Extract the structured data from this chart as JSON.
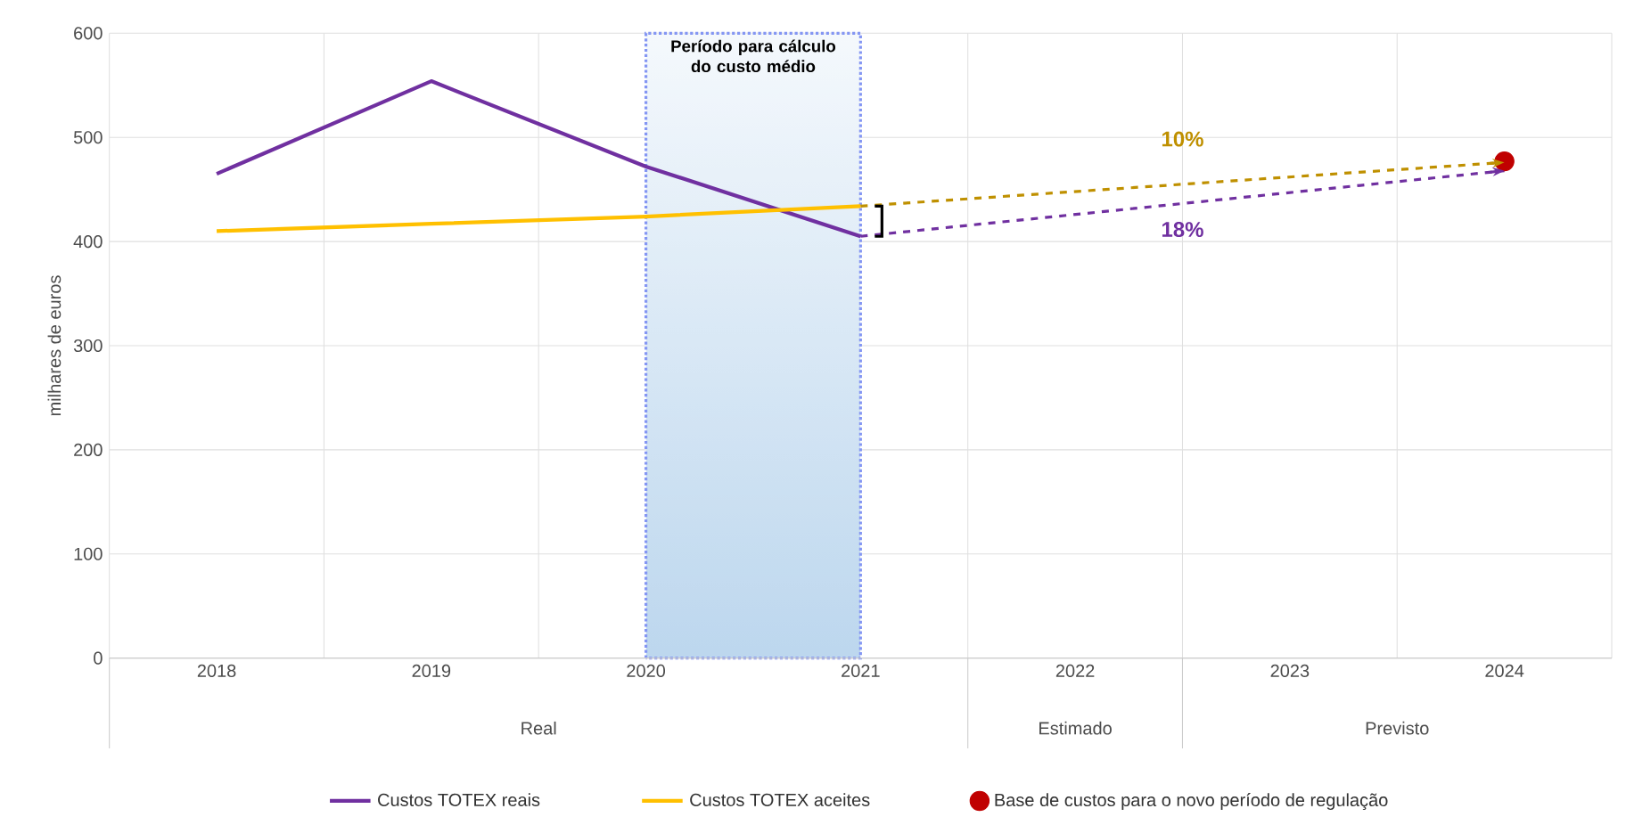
{
  "chart_data": {
    "type": "line",
    "ylabel": "milhares de euros",
    "categories": [
      "2018",
      "2019",
      "2020",
      "2021",
      "2022",
      "2023",
      "2024"
    ],
    "ylim": [
      0,
      600
    ],
    "yticks": [
      0,
      100,
      200,
      300,
      400,
      500,
      600
    ],
    "grid": true,
    "legend": "bottom",
    "series": [
      {
        "name": "Custos TOTEX reais",
        "color": "#7030a0",
        "values": [
          465,
          554,
          472,
          405,
          null,
          null,
          null
        ]
      },
      {
        "name": "Custos TOTEX aceites",
        "color": "#ffc000",
        "values": [
          410,
          417,
          424,
          434,
          null,
          null,
          null
        ]
      },
      {
        "name": "Base de custos para o novo período de regulação",
        "type": "scatter",
        "color": "#c00000",
        "values": [
          null,
          null,
          null,
          null,
          null,
          null,
          477
        ]
      },
      {
        "type": "line",
        "line_style": "dashed",
        "color": "#bf9000",
        "values": [
          null,
          null,
          null,
          434,
          null,
          null,
          476
        ]
      },
      {
        "type": "line",
        "line_style": "dashed",
        "color": "#7030a0",
        "values": [
          null,
          null,
          null,
          405,
          null,
          null,
          468
        ]
      }
    ],
    "bands": [
      {
        "axis": "x",
        "from": "2020",
        "to": "2021",
        "label": "Período para cálculo do custo médio",
        "color": "#bdd7ee"
      }
    ],
    "annotations": [
      "10%",
      "18%",
      "Real",
      "Estimado",
      "Previsto"
    ]
  }
}
